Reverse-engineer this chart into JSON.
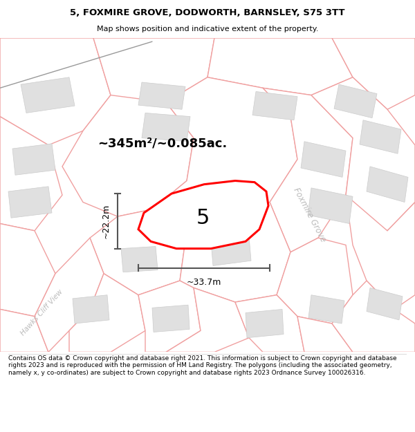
{
  "title_line1": "5, FOXMIRE GROVE, DODWORTH, BARNSLEY, S75 3TT",
  "title_line2": "Map shows position and indicative extent of the property.",
  "area_label": "~345m²/~0.085ac.",
  "width_label": "~33.7m",
  "height_label": "~22.2m",
  "plot_number": "5",
  "road_label1": "Foxmire Grove",
  "road_label2": "Hawks Cliff View",
  "footer_text": "Contains OS data © Crown copyright and database right 2021. This information is subject to Crown copyright and database rights 2023 and is reproduced with the permission of HM Land Registry. The polygons (including the associated geometry, namely x, y co-ordinates) are subject to Crown copyright and database rights 2023 Ordnance Survey 100026316.",
  "bg_color": "#ffffff",
  "map_bg": "#ffffff",
  "plot_fill": "#ffffff",
  "plot_edge": "#ff0000",
  "building_fill": "#e0e0e0",
  "building_edge": "#cccccc",
  "road_line": "#f0a0a0",
  "parcel_line": "#f0a0a0",
  "dim_line": "#555555",
  "title_color": "#000000",
  "footer_color": "#000000",
  "title_sep_line": "#cccccc",
  "footer_sep_line": "#cccccc",
  "gray_diag_line": "#aaaaaa",
  "road_label_color": "#bbbbbb"
}
